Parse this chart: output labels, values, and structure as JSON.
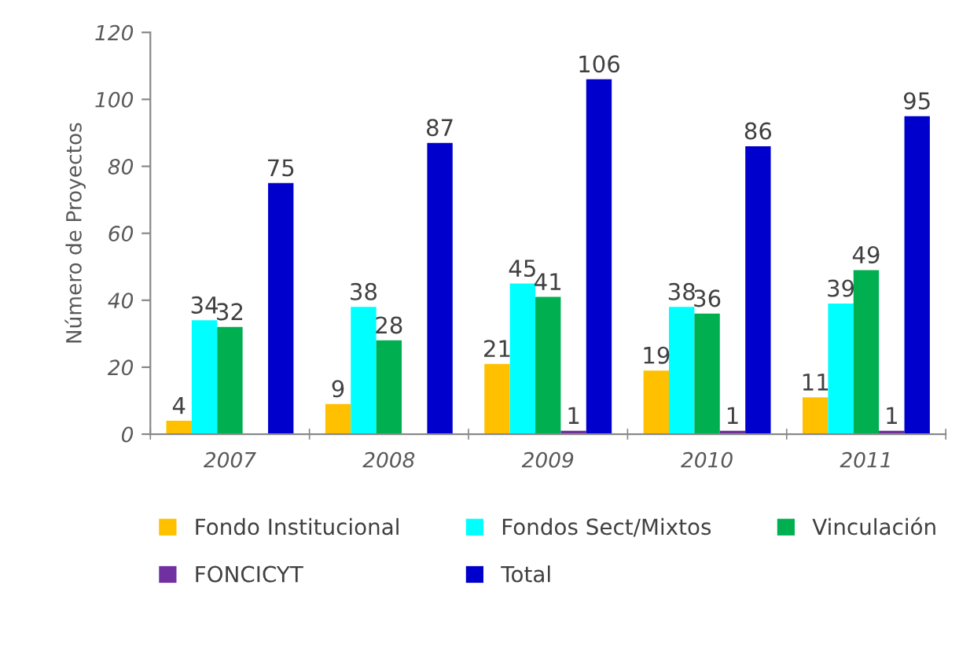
{
  "chart_data": {
    "type": "bar",
    "ylabel": "Número de Proyectos",
    "categories": [
      "2007",
      "2008",
      "2009",
      "2010",
      "2011"
    ],
    "series": [
      {
        "name": "Fondo Institucional",
        "color": "#ffc000",
        "values": [
          4,
          9,
          21,
          19,
          11
        ]
      },
      {
        "name": "Fondos Sect/Mixtos",
        "color": "#00ffff",
        "values": [
          34,
          38,
          45,
          38,
          39
        ]
      },
      {
        "name": "Vinculación",
        "color": "#00b050",
        "values": [
          32,
          28,
          41,
          36,
          49
        ]
      },
      {
        "name": "FONCICYT",
        "color": "#7030a0",
        "values": [
          null,
          null,
          1,
          1,
          1
        ]
      },
      {
        "name": "Total",
        "color": "#0000cc",
        "values": [
          75,
          87,
          106,
          86,
          95
        ]
      }
    ],
    "ylim": [
      0,
      120
    ],
    "yticks": [
      0,
      20,
      40,
      60,
      80,
      100,
      120
    ],
    "data_labels": true,
    "grid": false,
    "legend": "bottom"
  }
}
